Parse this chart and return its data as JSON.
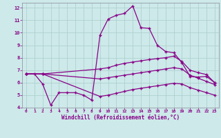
{
  "xlabel": "Windchill (Refroidissement éolien,°C)",
  "background_color": "#cde9e9",
  "line_color": "#880088",
  "grid_color": "#aacccc",
  "xlim": [
    -0.5,
    23.5
  ],
  "ylim": [
    4,
    12.4
  ],
  "xticks": [
    0,
    1,
    2,
    3,
    4,
    5,
    6,
    7,
    8,
    9,
    10,
    11,
    12,
    13,
    14,
    15,
    16,
    17,
    18,
    19,
    20,
    21,
    22,
    23
  ],
  "yticks": [
    4,
    5,
    6,
    7,
    8,
    9,
    10,
    11,
    12
  ],
  "curve1_x": [
    0,
    1,
    2,
    3,
    4,
    5,
    6,
    7,
    8,
    9,
    10,
    11,
    12,
    13,
    14,
    15,
    16,
    17,
    18,
    19,
    20,
    21,
    22,
    23
  ],
  "curve1_y": [
    6.7,
    6.7,
    5.9,
    4.2,
    5.2,
    5.2,
    5.2,
    5.0,
    4.6,
    9.8,
    11.1,
    11.4,
    11.55,
    12.15,
    10.4,
    10.35,
    9.0,
    8.5,
    8.4,
    7.6,
    6.5,
    6.45,
    6.5,
    6.0
  ],
  "curve2_x": [
    0,
    2,
    9,
    10,
    11,
    12,
    13,
    14,
    15,
    16,
    17,
    18,
    19,
    20,
    21,
    22,
    23
  ],
  "curve2_y": [
    6.7,
    6.7,
    7.1,
    7.2,
    7.4,
    7.55,
    7.65,
    7.75,
    7.85,
    7.93,
    8.0,
    8.12,
    7.7,
    7.0,
    6.8,
    6.65,
    6.0
  ],
  "curve3_x": [
    0,
    2,
    9,
    10,
    11,
    12,
    13,
    14,
    15,
    16,
    17,
    18,
    19,
    20,
    21,
    22,
    23
  ],
  "curve3_y": [
    6.7,
    6.7,
    6.3,
    6.4,
    6.5,
    6.6,
    6.7,
    6.8,
    6.9,
    7.0,
    7.1,
    7.2,
    7.1,
    6.6,
    6.35,
    6.1,
    5.85
  ],
  "curve4_x": [
    0,
    2,
    9,
    10,
    11,
    12,
    13,
    14,
    15,
    16,
    17,
    18,
    19,
    20,
    21,
    22,
    23
  ],
  "curve4_y": [
    6.7,
    6.7,
    4.9,
    5.0,
    5.15,
    5.3,
    5.45,
    5.55,
    5.65,
    5.75,
    5.85,
    5.95,
    5.9,
    5.6,
    5.4,
    5.2,
    5.0
  ]
}
